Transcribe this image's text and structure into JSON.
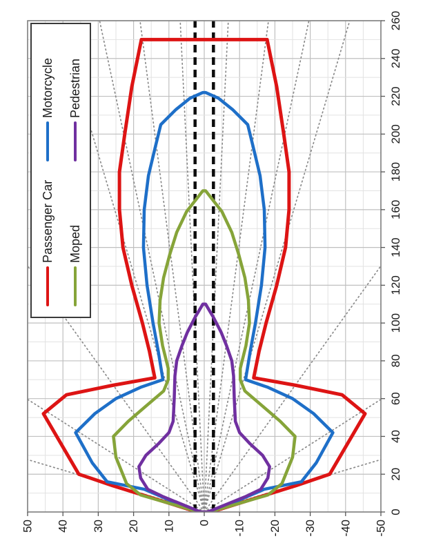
{
  "figure": {
    "kind": "detection-range-diagram",
    "background": "#ffffff",
    "rotation": "rendered landscape, displayed rotated 90deg counter-clockwise"
  },
  "chart_data": {
    "type": "line",
    "title": "",
    "xlabel": "",
    "ylabel": "",
    "x_axis": {
      "name": "distance",
      "min": 0,
      "max": 260,
      "label_step": 20,
      "grid_minor_step": 10,
      "grid_major_step": 20,
      "tick_labels": [
        "0",
        "20",
        "40",
        "60",
        "80",
        "100",
        "120",
        "140",
        "160",
        "180",
        "200",
        "220",
        "240",
        "260"
      ]
    },
    "y_axis": {
      "name": "lateral",
      "min": -50,
      "max": 50,
      "label_step": 10,
      "grid_minor_step": 5,
      "grid_major_step": 10,
      "tick_labels": [
        "50",
        "40",
        "30",
        "20",
        "10",
        "0",
        "-10",
        "-20",
        "-30",
        "-40",
        "-50"
      ]
    },
    "grid": true,
    "legend_position": "top-right-inside",
    "series": [
      {
        "name": "Passenger Car",
        "color": "#dd1414",
        "stroke_width": 5,
        "points_half": [
          [
            0,
            2
          ],
          [
            14,
            26
          ],
          [
            20,
            35.5
          ],
          [
            52,
            45.5
          ],
          [
            62,
            39
          ],
          [
            67,
            26
          ],
          [
            71,
            14
          ],
          [
            85,
            15.5
          ],
          [
            100,
            17.5
          ],
          [
            120,
            20.5
          ],
          [
            140,
            23
          ],
          [
            160,
            24
          ],
          [
            180,
            24
          ],
          [
            200,
            22.5
          ],
          [
            225,
            20.5
          ],
          [
            250,
            17.8
          ]
        ],
        "mirrored": true
      },
      {
        "name": "Motorcycle",
        "color": "#1e6fc8",
        "stroke_width": 4.5,
        "points_half": [
          [
            0,
            2
          ],
          [
            12,
            17
          ],
          [
            16,
            27.5
          ],
          [
            26,
            31.7
          ],
          [
            42,
            36.4
          ],
          [
            52,
            31
          ],
          [
            60,
            25
          ],
          [
            66,
            18
          ],
          [
            70,
            11.7
          ],
          [
            85,
            13
          ],
          [
            100,
            14.5
          ],
          [
            120,
            16.2
          ],
          [
            140,
            17.2
          ],
          [
            160,
            17
          ],
          [
            178,
            15.8
          ],
          [
            192,
            14
          ],
          [
            205,
            12.3
          ],
          [
            213,
            8
          ],
          [
            219,
            4
          ],
          [
            222,
            0.4
          ]
        ],
        "mirrored": true
      },
      {
        "name": "Moped",
        "color": "#86a439",
        "stroke_width": 4.5,
        "points_half": [
          [
            0,
            1.5
          ],
          [
            9,
            18
          ],
          [
            15,
            22
          ],
          [
            29,
            25
          ],
          [
            40,
            25.7
          ],
          [
            48,
            21.5
          ],
          [
            56,
            16.5
          ],
          [
            64,
            11.5
          ],
          [
            70,
            10.2
          ],
          [
            76,
            10.2
          ],
          [
            88,
            11.8
          ],
          [
            100,
            12.8
          ],
          [
            112,
            12.5
          ],
          [
            124,
            11.5
          ],
          [
            136,
            9.8
          ],
          [
            148,
            7.8
          ],
          [
            159,
            5
          ],
          [
            170,
            0.4
          ]
        ],
        "mirrored": true
      },
      {
        "name": "Pedestrian",
        "color": "#7030a0",
        "stroke_width": 4.5,
        "points_half": [
          [
            0,
            1
          ],
          [
            8,
            11.5
          ],
          [
            12,
            16
          ],
          [
            18,
            18
          ],
          [
            24,
            18.5
          ],
          [
            30,
            16.5
          ],
          [
            36,
            13
          ],
          [
            42,
            10
          ],
          [
            48,
            8.8
          ],
          [
            60,
            8.5
          ],
          [
            72,
            8.3
          ],
          [
            80,
            7.8
          ],
          [
            88,
            6.3
          ],
          [
            95,
            4.8
          ],
          [
            103,
            2.6
          ],
          [
            110,
            0.4
          ]
        ],
        "mirrored": true
      }
    ],
    "reference_lines": {
      "corridor_lateral": [
        2.6,
        -2.6
      ],
      "corridor_color": "#0d0d0d",
      "ray_angles_deg": [
        1.5,
        4,
        6.5,
        9,
        21,
        40,
        61
      ],
      "ray_color": "#8a8a8a"
    },
    "legend": {
      "entries": [
        {
          "label": "Passenger Car",
          "color": "#dd1414"
        },
        {
          "label": "Motorcycle",
          "color": "#1e6fc8"
        },
        {
          "label": "Moped",
          "color": "#86a439"
        },
        {
          "label": "Pedestrian",
          "color": "#7030a0"
        }
      ],
      "columns": 2,
      "border_color": "#3a3a3a",
      "fill": "#ffffff"
    },
    "colors": {
      "grid_minor": "#e2e2e2",
      "grid_major": "#bfbfbf",
      "plot_border": "#808080",
      "tick_text": "#1a1a1a"
    }
  }
}
